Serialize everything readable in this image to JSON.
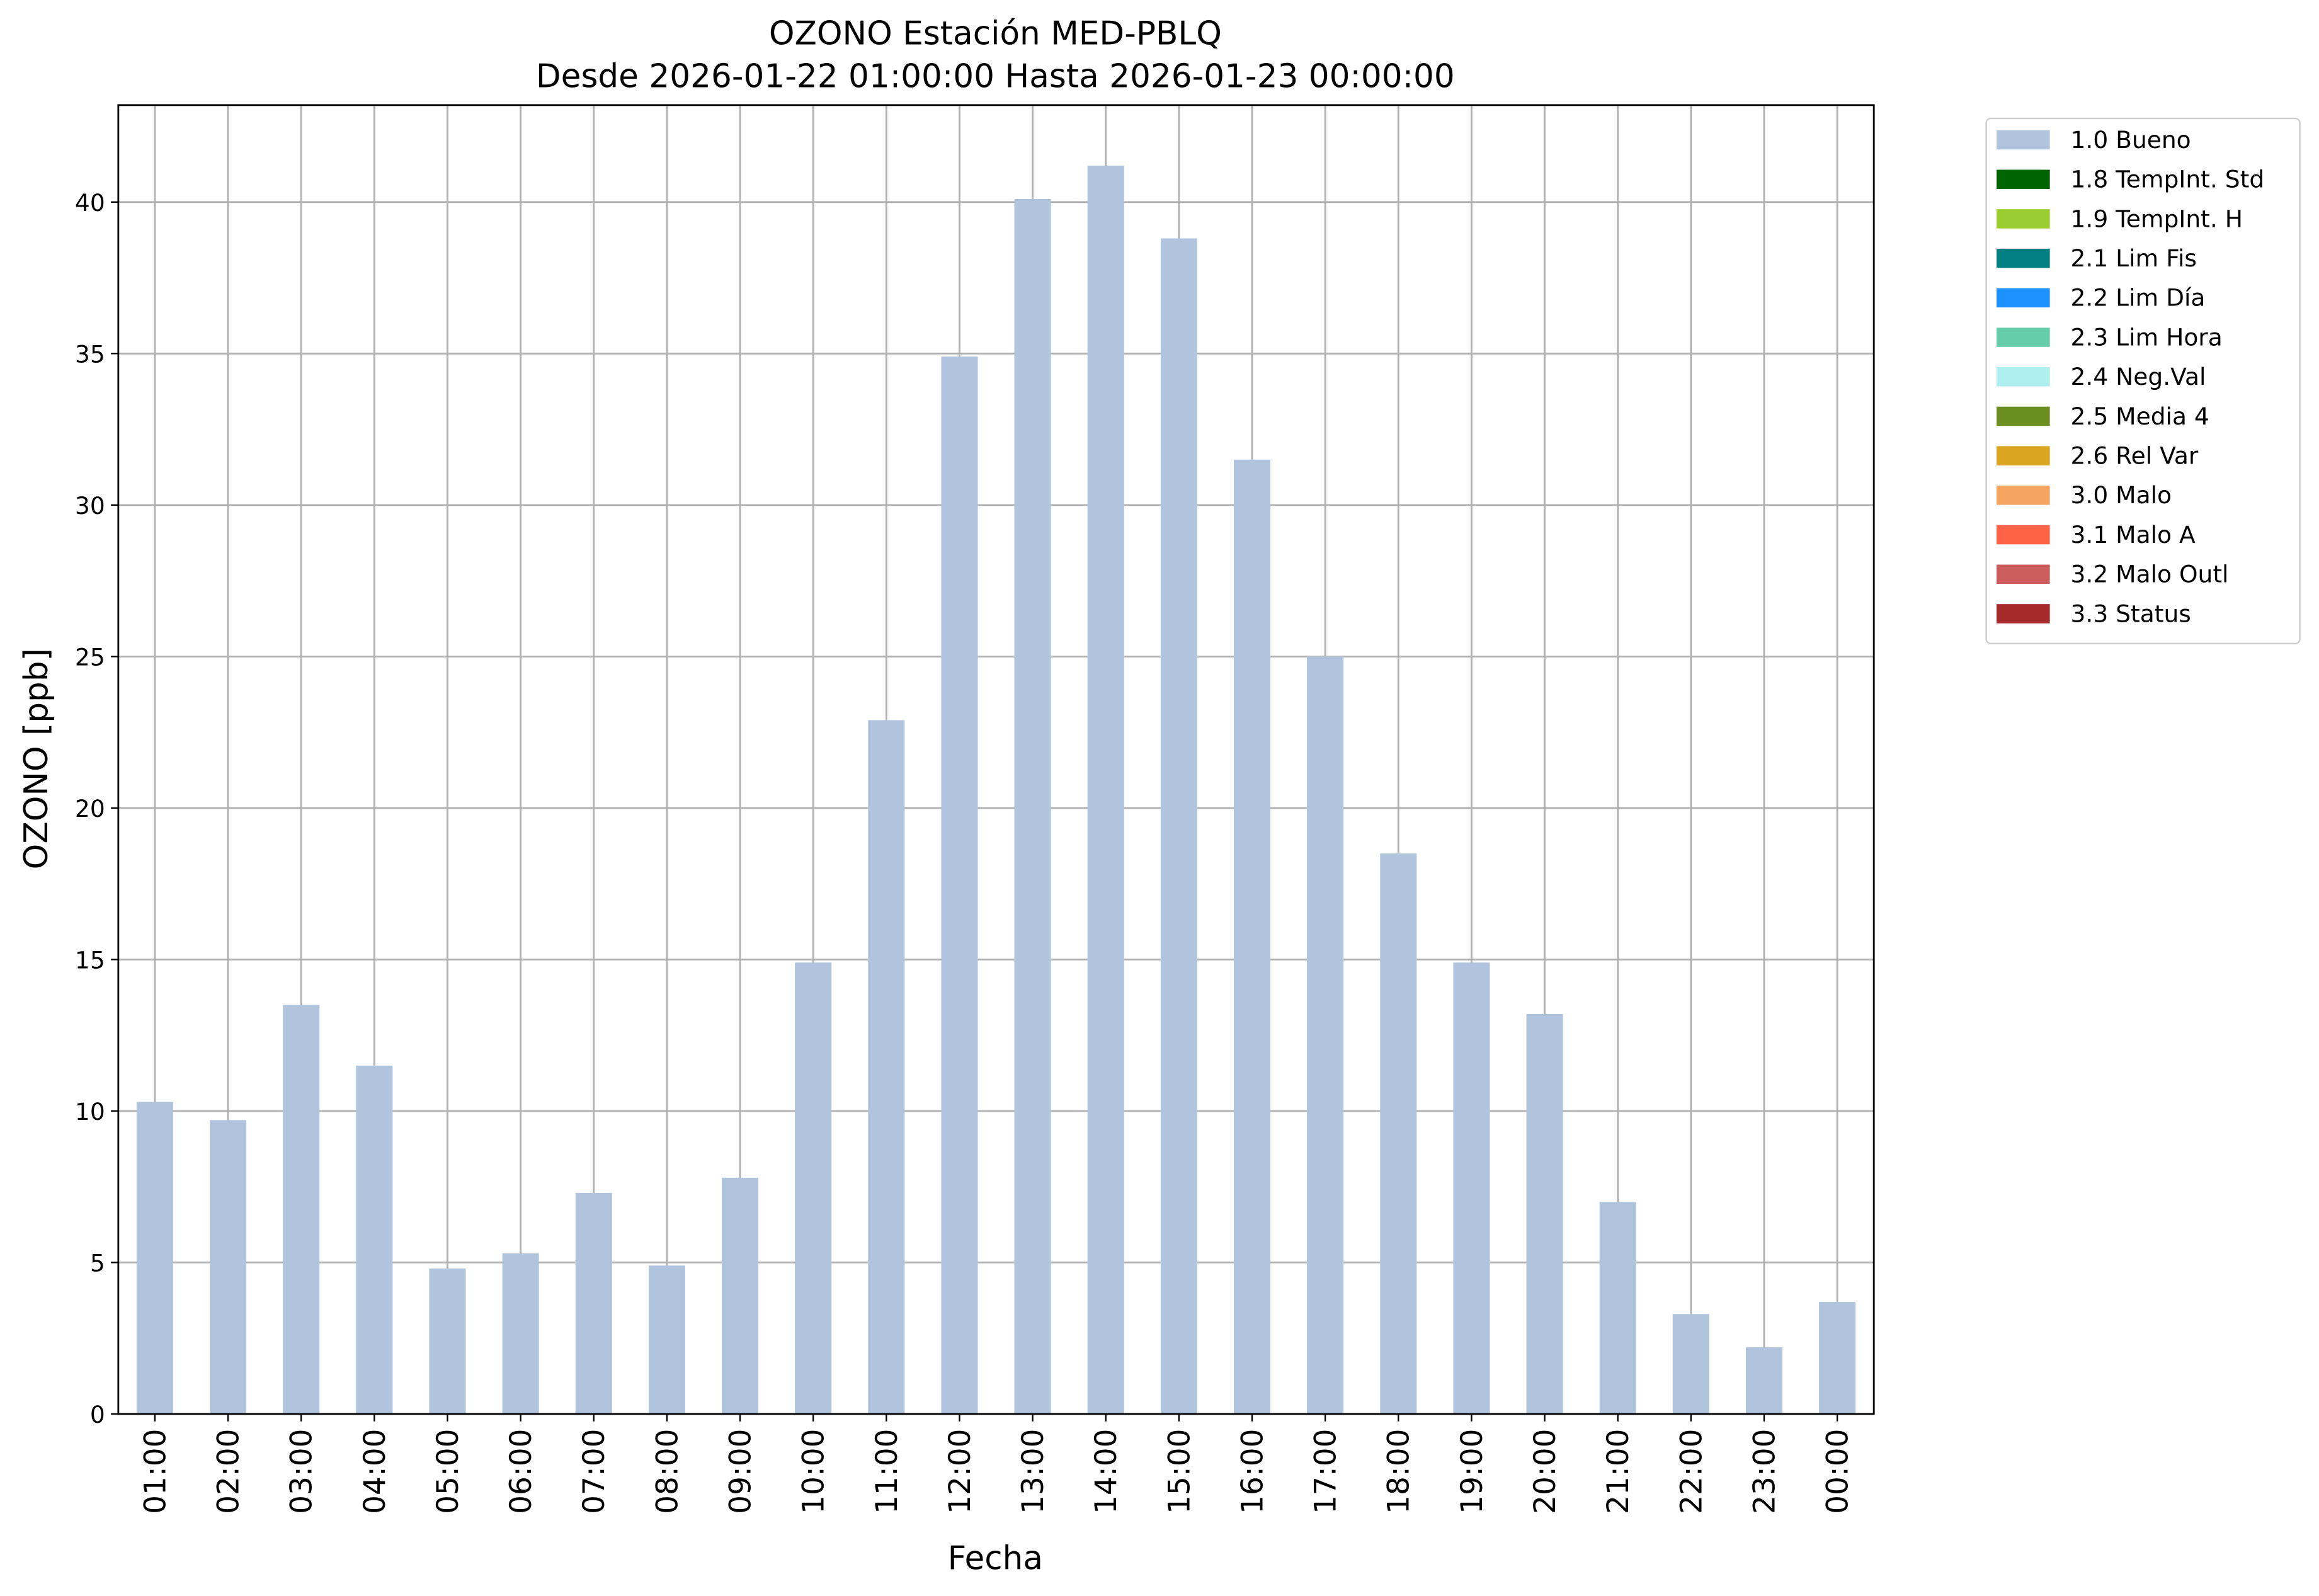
{
  "chart_data": {
    "type": "bar",
    "stacked": true,
    "title": "OZONO Estación MED-PBLQ",
    "subtitle": "Desde 2026-01-22 01:00:00 Hasta 2026-01-23 00:00:00",
    "x_label": "Fecha",
    "y_label": "OZONO [ppb]",
    "categories": [
      "01:00",
      "02:00",
      "03:00",
      "04:00",
      "05:00",
      "06:00",
      "07:00",
      "08:00",
      "09:00",
      "10:00",
      "11:00",
      "12:00",
      "13:00",
      "14:00",
      "15:00",
      "16:00",
      "17:00",
      "18:00",
      "19:00",
      "20:00",
      "21:00",
      "22:00",
      "23:00",
      "00:00"
    ],
    "series": [
      {
        "name": "1.0 Bueno",
        "color": "#b0c4de",
        "values": [
          10.3,
          9.7,
          13.5,
          11.5,
          4.8,
          5.3,
          7.3,
          4.9,
          7.8,
          14.9,
          22.9,
          34.9,
          40.1,
          41.2,
          38.8,
          31.5,
          25.0,
          18.5,
          14.9,
          13.2,
          7.0,
          3.3,
          2.2,
          3.7
        ]
      },
      {
        "name": "1.8 TempInt. Std",
        "color": "#006400",
        "values": [
          null,
          null,
          null,
          null,
          null,
          null,
          null,
          null,
          null,
          null,
          null,
          null,
          null,
          null,
          null,
          null,
          null,
          null,
          null,
          null,
          null,
          null,
          null,
          null
        ]
      },
      {
        "name": "1.9 TempInt. H",
        "color": "#9acd32",
        "values": [
          null,
          null,
          null,
          null,
          null,
          null,
          null,
          null,
          null,
          null,
          null,
          null,
          null,
          null,
          null,
          null,
          null,
          null,
          null,
          null,
          null,
          null,
          null,
          null
        ]
      },
      {
        "name": "2.1 Lim Fis",
        "color": "#008080",
        "values": [
          null,
          null,
          null,
          null,
          null,
          null,
          null,
          null,
          null,
          null,
          null,
          null,
          null,
          null,
          null,
          null,
          null,
          null,
          null,
          null,
          null,
          null,
          null,
          null
        ]
      },
      {
        "name": "2.2 Lim Día",
        "color": "#1e90ff",
        "values": [
          null,
          null,
          null,
          null,
          null,
          null,
          null,
          null,
          null,
          null,
          null,
          null,
          null,
          null,
          null,
          null,
          null,
          null,
          null,
          null,
          null,
          null,
          null,
          null
        ]
      },
      {
        "name": "2.3 Lim Hora",
        "color": "#66cdaa",
        "values": [
          null,
          null,
          null,
          null,
          null,
          null,
          null,
          null,
          null,
          null,
          null,
          null,
          null,
          null,
          null,
          null,
          null,
          null,
          null,
          null,
          null,
          null,
          null,
          null
        ]
      },
      {
        "name": "2.4 Neg.Val",
        "color": "#afeeee",
        "values": [
          null,
          null,
          null,
          null,
          null,
          null,
          null,
          null,
          null,
          null,
          null,
          null,
          null,
          null,
          null,
          null,
          null,
          null,
          null,
          null,
          null,
          null,
          null,
          null
        ]
      },
      {
        "name": "2.5 Media 4",
        "color": "#6b8e23",
        "values": [
          null,
          null,
          null,
          null,
          null,
          null,
          null,
          null,
          null,
          null,
          null,
          null,
          null,
          null,
          null,
          null,
          null,
          null,
          null,
          null,
          null,
          null,
          null,
          null
        ]
      },
      {
        "name": "2.6 Rel Var",
        "color": "#daa520",
        "values": [
          null,
          null,
          null,
          null,
          null,
          null,
          null,
          null,
          null,
          null,
          null,
          null,
          null,
          null,
          null,
          null,
          null,
          null,
          null,
          null,
          null,
          null,
          null,
          null
        ]
      },
      {
        "name": "3.0 Malo",
        "color": "#f4a460",
        "values": [
          null,
          null,
          null,
          null,
          null,
          null,
          null,
          null,
          null,
          null,
          null,
          null,
          null,
          null,
          null,
          null,
          null,
          null,
          null,
          null,
          null,
          null,
          null,
          null
        ]
      },
      {
        "name": "3.1 Malo A",
        "color": "#ff6347",
        "values": [
          null,
          null,
          null,
          null,
          null,
          null,
          null,
          null,
          null,
          null,
          null,
          null,
          null,
          null,
          null,
          null,
          null,
          null,
          null,
          null,
          null,
          null,
          null,
          null
        ]
      },
      {
        "name": "3.2 Malo Outl",
        "color": "#cd5c5c",
        "values": [
          null,
          null,
          null,
          null,
          null,
          null,
          null,
          null,
          null,
          null,
          null,
          null,
          null,
          null,
          null,
          null,
          null,
          null,
          null,
          null,
          null,
          null,
          null,
          null
        ]
      },
      {
        "name": "3.3 Status",
        "color": "#a52a2a",
        "values": [
          null,
          null,
          null,
          null,
          null,
          null,
          null,
          null,
          null,
          null,
          null,
          null,
          null,
          null,
          null,
          null,
          null,
          null,
          null,
          null,
          null,
          null,
          null,
          null
        ]
      }
    ],
    "ylim": [
      0,
      43.2
    ],
    "yticks": [
      0,
      5,
      10,
      15,
      20,
      25,
      30,
      35,
      40
    ],
    "grid": true,
    "legend": "outside-upper-right"
  }
}
